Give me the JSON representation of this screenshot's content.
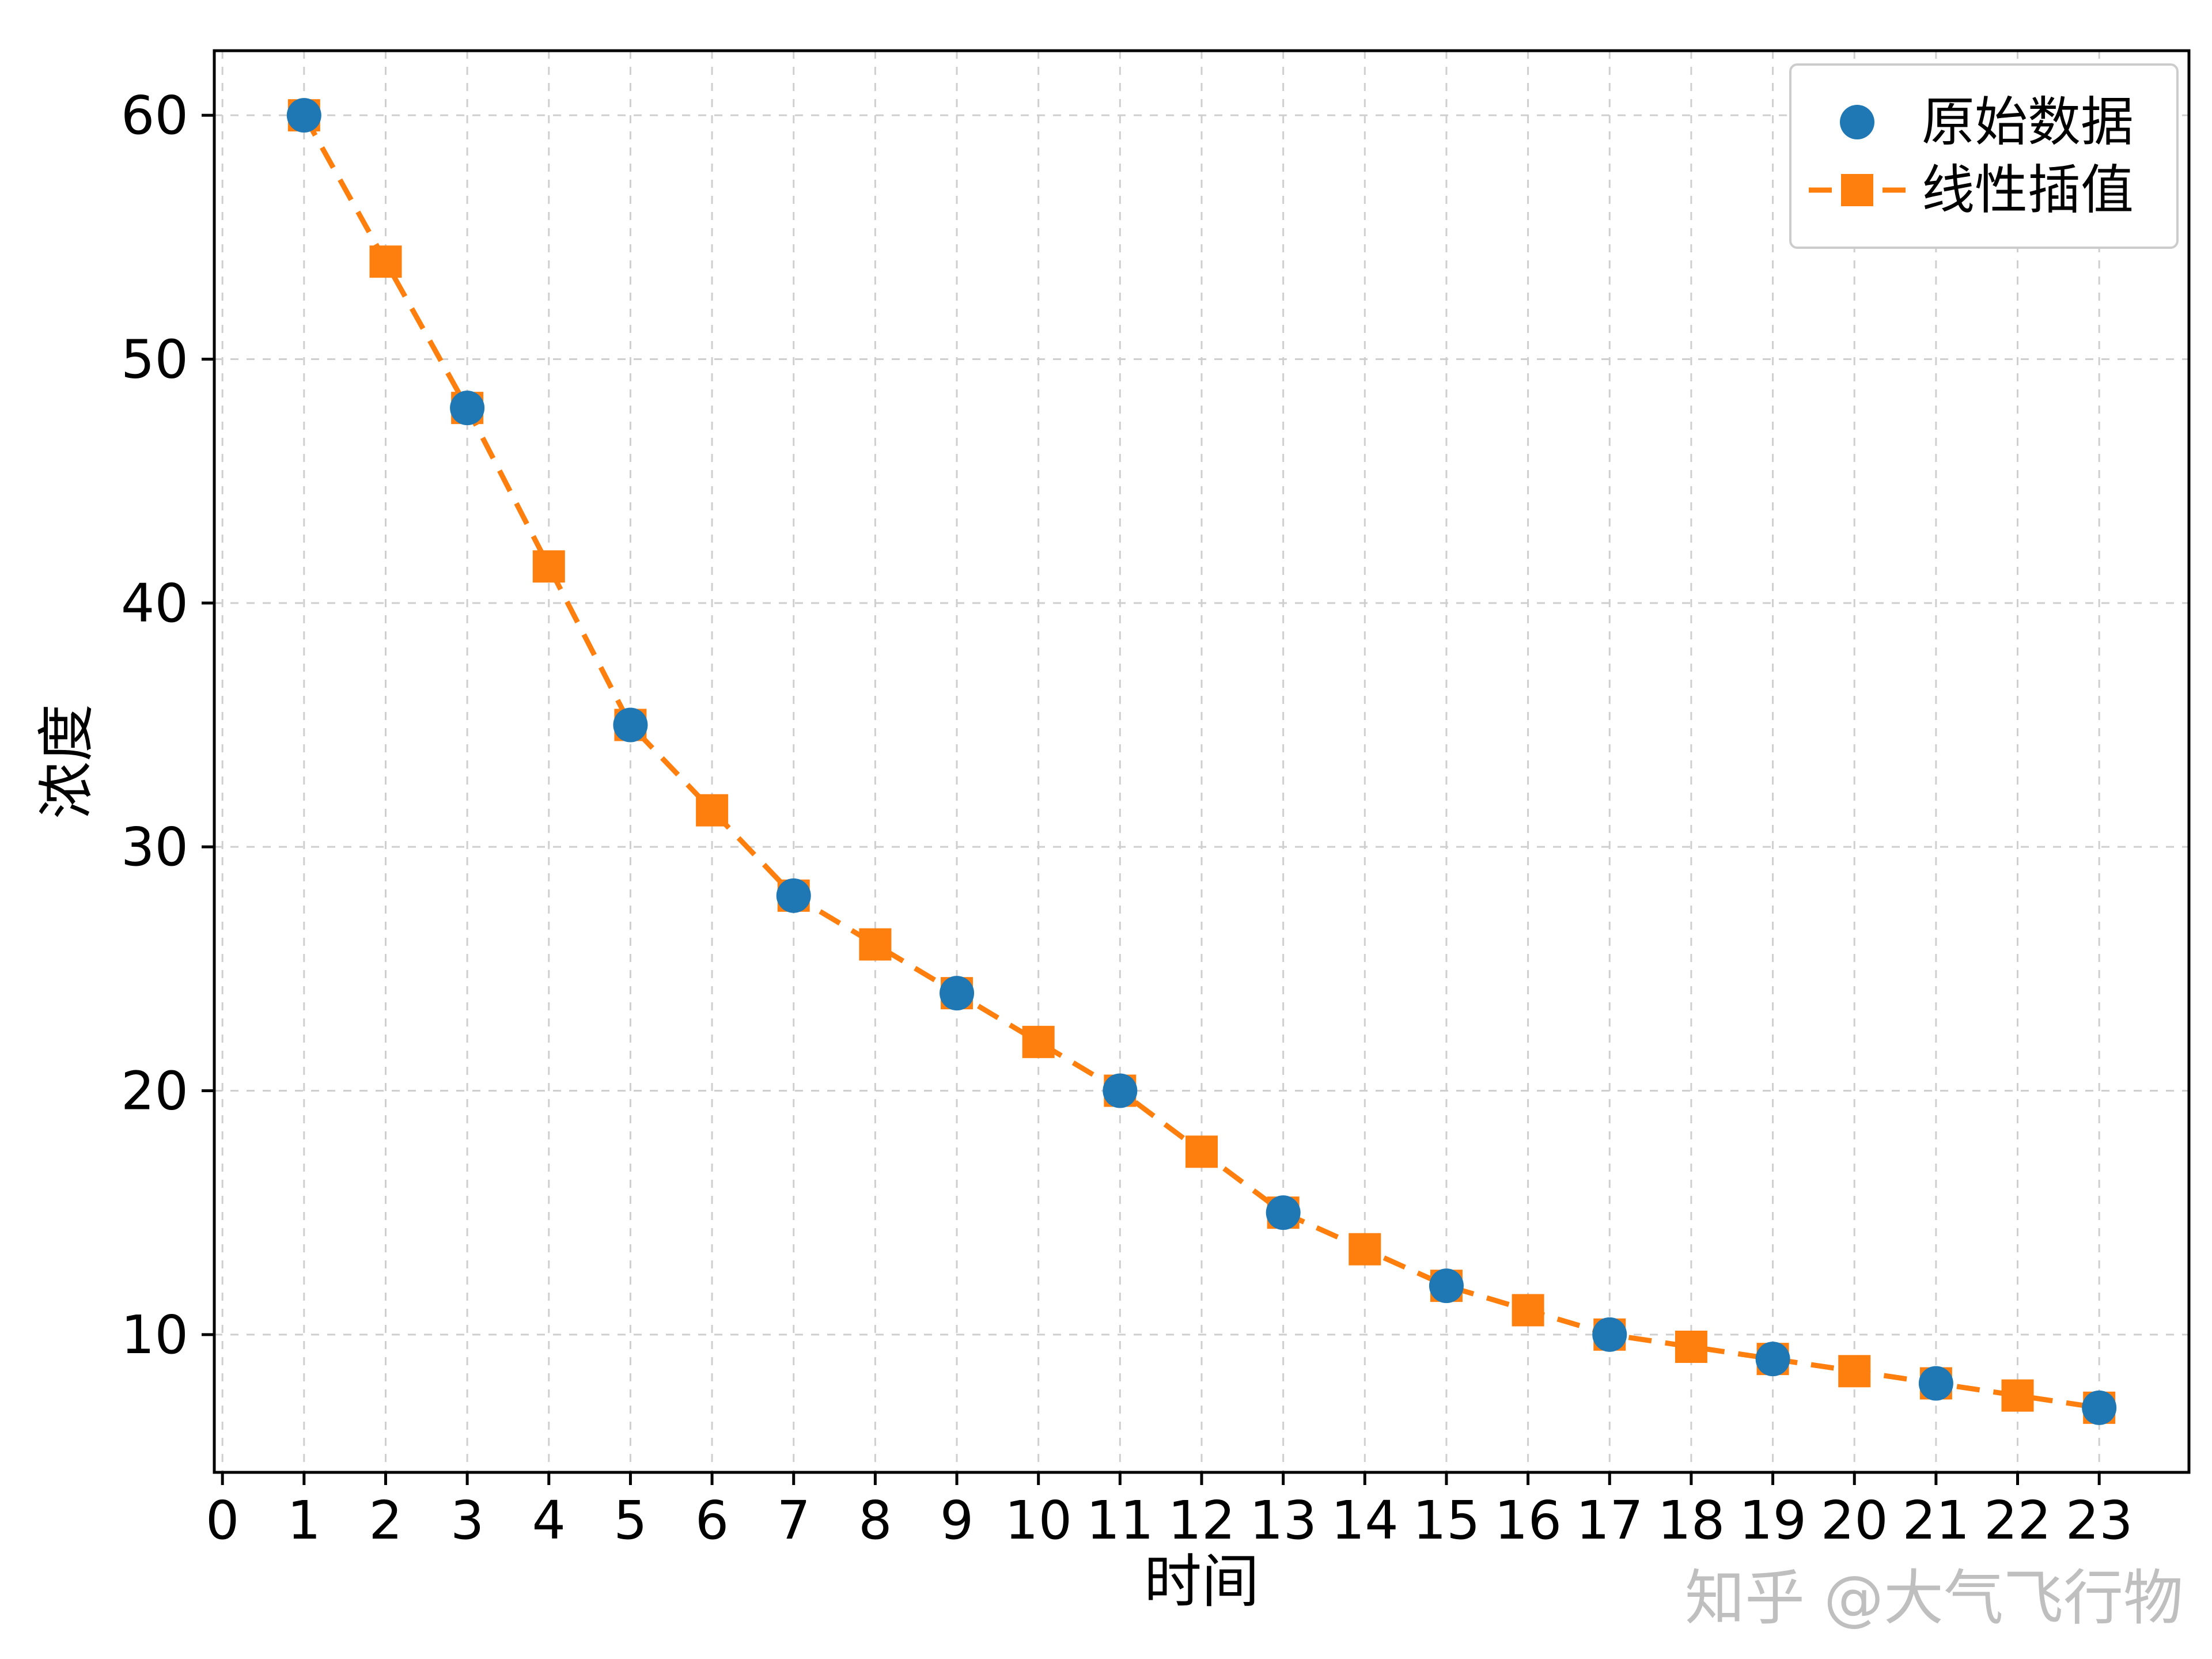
{
  "chart_data": {
    "type": "line",
    "title": "",
    "xlabel": "时间",
    "ylabel": "浓度",
    "xlim": [
      -0.1,
      24.1
    ],
    "ylim": [
      4.35,
      62.65
    ],
    "x_ticks": [
      0,
      1,
      2,
      3,
      4,
      5,
      6,
      7,
      8,
      9,
      10,
      11,
      12,
      13,
      14,
      15,
      16,
      17,
      18,
      19,
      20,
      21,
      22,
      23
    ],
    "y_ticks": [
      10,
      20,
      30,
      40,
      50,
      60
    ],
    "grid": true,
    "grid_style": "dashed",
    "legend_position": "upper right",
    "series": [
      {
        "name": "线性插值",
        "type": "line",
        "marker": "square",
        "linestyle": "dashed",
        "color": "#ff7f0e",
        "x": [
          1,
          2,
          3,
          4,
          5,
          6,
          7,
          8,
          9,
          10,
          11,
          12,
          13,
          14,
          15,
          16,
          17,
          18,
          19,
          20,
          21,
          22,
          23
        ],
        "y": [
          60,
          54,
          48,
          41.5,
          35,
          31.5,
          28,
          26,
          24,
          22,
          20,
          17.5,
          15,
          13.5,
          12,
          11,
          10,
          9.5,
          9,
          8.5,
          8,
          7.5,
          7
        ]
      },
      {
        "name": "原始数据",
        "type": "scatter",
        "marker": "circle",
        "linestyle": "none",
        "color": "#1f77b4",
        "x": [
          1,
          3,
          5,
          7,
          9,
          11,
          13,
          15,
          17,
          19,
          21,
          23
        ],
        "y": [
          60,
          48,
          35,
          28,
          24,
          20,
          15,
          12,
          10,
          9,
          8,
          7
        ]
      }
    ],
    "legend": [
      {
        "label": "原始数据",
        "marker": "circle",
        "color": "#1f77b4"
      },
      {
        "label": "线性插值",
        "marker": "square-dashed-line",
        "color": "#ff7f0e"
      }
    ]
  },
  "watermark": "知乎 @大气飞行物",
  "colors": {
    "background": "#ffffff",
    "axis": "#000000",
    "grid": "#cfcfcf",
    "tick_label": "#000000",
    "legend_border": "#cccccc",
    "watermark": "#b9b9b9",
    "series_original": "#1f77b4",
    "series_interp": "#ff7f0e"
  }
}
